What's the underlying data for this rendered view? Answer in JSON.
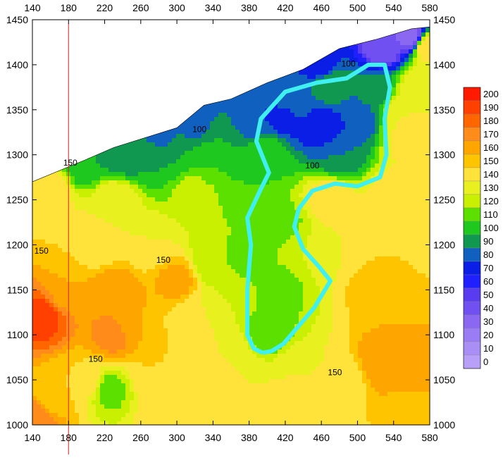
{
  "chart_data": {
    "type": "heatmap",
    "title": "",
    "xlabel": "",
    "ylabel": "",
    "xlim": [
      140,
      580
    ],
    "ylim": [
      1000,
      1450
    ],
    "x_ticks": [
      140,
      180,
      220,
      260,
      300,
      340,
      380,
      420,
      460,
      500,
      540,
      580
    ],
    "y_ticks": [
      1000,
      1050,
      1100,
      1150,
      1200,
      1250,
      1300,
      1350,
      1400,
      1450
    ],
    "grid": false,
    "legend": {
      "placement": "right",
      "levels": [
        200,
        190,
        180,
        170,
        160,
        150,
        140,
        130,
        120,
        110,
        100,
        90,
        80,
        70,
        60,
        50,
        40,
        30,
        20,
        10,
        0
      ],
      "colors": [
        "#ff1a00",
        "#ff4000",
        "#ff6600",
        "#ff8c1a",
        "#ffa500",
        "#ffc400",
        "#ffe23a",
        "#e8f020",
        "#c8f000",
        "#5ce000",
        "#1ec81e",
        "#109850",
        "#1060c0",
        "#0a1ee6",
        "#2020ff",
        "#5a3cf0",
        "#7050f0",
        "#8a68f2",
        "#9a7cf4",
        "#a98ef6",
        "#b8a0f8"
      ]
    },
    "contour_labels": [
      {
        "text": "150",
        "x": 150,
        "y": 1190
      },
      {
        "text": "150",
        "x": 285,
        "y": 1180
      },
      {
        "text": "150",
        "x": 210,
        "y": 1070
      },
      {
        "text": "150",
        "x": 475,
        "y": 1055
      },
      {
        "text": "100",
        "x": 325,
        "y": 1325
      },
      {
        "text": "100",
        "x": 450,
        "y": 1285
      },
      {
        "text": "100",
        "x": 490,
        "y": 1398
      },
      {
        "text": "150",
        "x": 182,
        "y": 1288
      }
    ],
    "reference_line": {
      "x": 180,
      "color": "#e02020"
    },
    "outline_polygon": {
      "color": "#40f0f0",
      "points": [
        [
          395,
          1080
        ],
        [
          385,
          1085
        ],
        [
          378,
          1100
        ],
        [
          378,
          1150
        ],
        [
          382,
          1200
        ],
        [
          378,
          1230
        ],
        [
          392,
          1260
        ],
        [
          402,
          1280
        ],
        [
          388,
          1315
        ],
        [
          393,
          1340
        ],
        [
          420,
          1370
        ],
        [
          455,
          1380
        ],
        [
          488,
          1385
        ],
        [
          512,
          1400
        ],
        [
          530,
          1400
        ],
        [
          536,
          1375
        ],
        [
          530,
          1340
        ],
        [
          532,
          1300
        ],
        [
          525,
          1275
        ],
        [
          500,
          1265
        ],
        [
          475,
          1268
        ],
        [
          450,
          1260
        ],
        [
          435,
          1240
        ],
        [
          430,
          1220
        ],
        [
          440,
          1195
        ],
        [
          458,
          1175
        ],
        [
          470,
          1160
        ],
        [
          452,
          1130
        ],
        [
          435,
          1110
        ],
        [
          418,
          1090
        ],
        [
          405,
          1082
        ]
      ]
    },
    "boundary": [
      [
        140,
        1270
      ],
      [
        200,
        1295
      ],
      [
        230,
        1308
      ],
      [
        300,
        1330
      ],
      [
        330,
        1355
      ],
      [
        360,
        1362
      ],
      [
        400,
        1380
      ],
      [
        440,
        1395
      ],
      [
        480,
        1418
      ],
      [
        520,
        1428
      ],
      [
        560,
        1440
      ],
      [
        580,
        1442
      ]
    ],
    "colorscale_points": [
      [
        150,
        1120,
        195
      ],
      [
        145,
        1010,
        180
      ],
      [
        155,
        1260,
        150
      ],
      [
        190,
        1200,
        150
      ],
      [
        215,
        1200,
        140
      ],
      [
        230,
        1250,
        140
      ],
      [
        270,
        1200,
        140
      ],
      [
        300,
        1160,
        165
      ],
      [
        230,
        1150,
        170
      ],
      [
        250,
        1110,
        160
      ],
      [
        225,
        1040,
        115
      ],
      [
        200,
        1050,
        150
      ],
      [
        270,
        1060,
        150
      ],
      [
        290,
        1020,
        150
      ],
      [
        320,
        1120,
        140
      ],
      [
        340,
        1180,
        120
      ],
      [
        320,
        1260,
        125
      ],
      [
        270,
        1300,
        100
      ],
      [
        240,
        1300,
        90
      ],
      [
        200,
        1290,
        100
      ],
      [
        300,
        1300,
        100
      ],
      [
        340,
        1290,
        110
      ],
      [
        350,
        1320,
        100
      ],
      [
        380,
        1340,
        80
      ],
      [
        420,
        1340,
        75
      ],
      [
        460,
        1330,
        70
      ],
      [
        500,
        1340,
        80
      ],
      [
        520,
        1370,
        95
      ],
      [
        470,
        1380,
        100
      ],
      [
        430,
        1360,
        90
      ],
      [
        400,
        1300,
        110
      ],
      [
        420,
        1220,
        115
      ],
      [
        410,
        1150,
        115
      ],
      [
        400,
        1100,
        112
      ],
      [
        380,
        1180,
        115
      ],
      [
        360,
        1210,
        120
      ],
      [
        440,
        1200,
        130
      ],
      [
        470,
        1200,
        140
      ],
      [
        470,
        1250,
        150
      ],
      [
        540,
        1250,
        150
      ],
      [
        560,
        1320,
        150
      ],
      [
        560,
        1200,
        150
      ],
      [
        520,
        1150,
        155
      ],
      [
        530,
        1070,
        170
      ],
      [
        560,
        1060,
        165
      ],
      [
        480,
        1050,
        140
      ],
      [
        430,
        1060,
        140
      ],
      [
        380,
        1050,
        140
      ],
      [
        340,
        1040,
        145
      ],
      [
        360,
        1150,
        130
      ],
      [
        460,
        1400,
        70
      ],
      [
        530,
        1420,
        40
      ],
      [
        560,
        1430,
        30
      ],
      [
        575,
        1420,
        150
      ],
      [
        320,
        1340,
        80
      ],
      [
        280,
        1320,
        85
      ],
      [
        480,
        1300,
        90
      ],
      [
        160,
        1030,
        150
      ],
      [
        420,
        1020,
        145
      ],
      [
        560,
        1010,
        150
      ],
      [
        300,
        1100,
        150
      ],
      [
        360,
        1080,
        140
      ],
      [
        520,
        1210,
        150
      ],
      [
        570,
        1380,
        140
      ],
      [
        550,
        1350,
        140
      ],
      [
        230,
        1100,
        175
      ],
      [
        180,
        1150,
        160
      ]
    ]
  },
  "legend_ticks": [
    "200",
    "190",
    "180",
    "170",
    "160",
    "150",
    "140",
    "130",
    "120",
    "110",
    "100",
    "90",
    "80",
    "70",
    "60",
    "50",
    "40",
    "30",
    "20",
    "10",
    "0"
  ]
}
